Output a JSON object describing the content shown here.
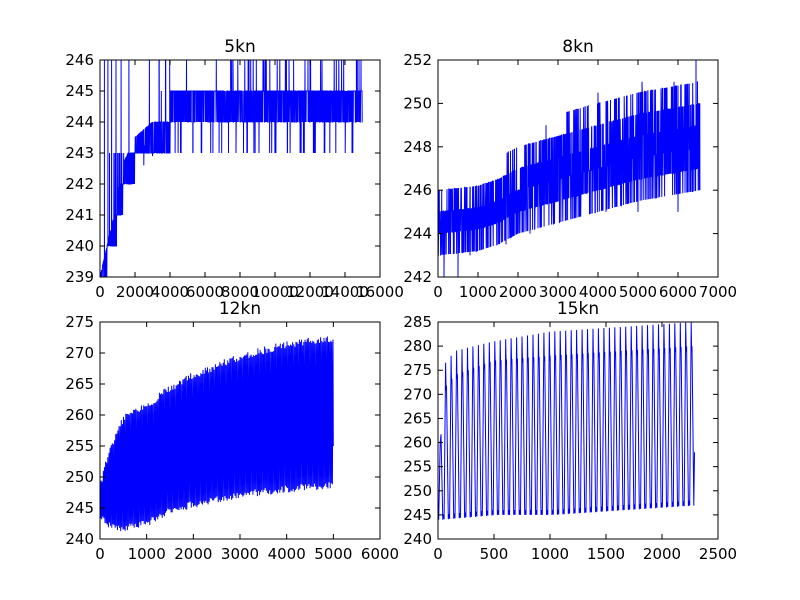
{
  "chart_data": [
    {
      "type": "line",
      "title": "5kn",
      "xlim": [
        0,
        16000
      ],
      "ylim": [
        239,
        246
      ],
      "xticks": [
        0,
        2000,
        4000,
        6000,
        8000,
        10000,
        12000,
        14000,
        16000
      ],
      "yticks": [
        239,
        240,
        241,
        242,
        243,
        244,
        245,
        246
      ],
      "series": [
        {
          "color": "#0000ff",
          "x_end": 15000,
          "baseline_points": [
            [
              0,
              239.0
            ],
            [
              400,
              240.0
            ],
            [
              700,
              240.5
            ],
            [
              1000,
              241.0
            ],
            [
              1300,
              242.0
            ],
            [
              1700,
              242.5
            ],
            [
              2000,
              243.0
            ],
            [
              3000,
              243.5
            ],
            [
              4000,
              243.8
            ],
            [
              5000,
              244.2
            ],
            [
              6000,
              244.3
            ],
            [
              10000,
              244.5
            ],
            [
              15000,
              244.5
            ]
          ],
          "band": [
            [
              0,
              239
            ],
            [
              800,
              241
            ],
            [
              1200,
              242.5
            ],
            [
              2000,
              243.5
            ],
            [
              4000,
              244.5
            ],
            [
              5000,
              245
            ],
            [
              15000,
              245
            ]
          ],
          "spikes": [
            [
              2500,
              242.6
            ],
            [
              3000,
              242.9
            ],
            [
              3500,
              245.0
            ],
            [
              4600,
              243.0
            ],
            [
              5300,
              243.0
            ],
            [
              7600,
              246.0
            ],
            [
              8200,
              243.0
            ],
            [
              9500,
              246.0
            ],
            [
              10800,
              246.0
            ],
            [
              12000,
              246.0
            ],
            [
              12300,
              243.0
            ],
            [
              13500,
              246.0
            ],
            [
              14400,
              243.0
            ],
            [
              14800,
              246.0
            ]
          ]
        }
      ]
    },
    {
      "type": "line",
      "title": "8kn",
      "xlim": [
        0,
        7000
      ],
      "ylim": [
        242,
        252
      ],
      "xticks": [
        0,
        1000,
        2000,
        3000,
        4000,
        5000,
        6000,
        7000
      ],
      "yticks": [
        242,
        244,
        246,
        248,
        250,
        252
      ],
      "series": [
        {
          "color": "#0000ff",
          "x_end": 6550,
          "upper": [
            [
              0,
              246
            ],
            [
              1000,
              246.2
            ],
            [
              1500,
              247
            ],
            [
              2000,
              248
            ],
            [
              3000,
              249
            ],
            [
              4000,
              250
            ],
            [
              5000,
              250.5
            ],
            [
              6550,
              251
            ]
          ],
          "lower": [
            [
              0,
              243
            ],
            [
              1000,
              243.2
            ],
            [
              1500,
              243.5
            ],
            [
              2000,
              244
            ],
            [
              3000,
              244.5
            ],
            [
              4000,
              245
            ],
            [
              5000,
              245.5
            ],
            [
              6550,
              246
            ]
          ],
          "dips": [
            [
              150,
              242.0
            ],
            [
              500,
              242.0
            ],
            [
              800,
              243.0
            ],
            [
              1700,
              243.5
            ],
            [
              2300,
              244.0
            ],
            [
              4200,
              245.0
            ],
            [
              5000,
              245.0
            ],
            [
              6000,
              245.0
            ]
          ],
          "spikes": [
            [
              2700,
              249.0
            ],
            [
              3400,
              249.0
            ],
            [
              4000,
              250.5
            ],
            [
              5100,
              251.0
            ],
            [
              5900,
              251.0
            ],
            [
              6450,
              252.0
            ]
          ]
        }
      ]
    },
    {
      "type": "line",
      "title": "12kn",
      "xlim": [
        0,
        6000
      ],
      "ylim": [
        240,
        275
      ],
      "xticks": [
        0,
        1000,
        2000,
        3000,
        4000,
        5000,
        6000
      ],
      "yticks": [
        240,
        245,
        250,
        255,
        260,
        265,
        270,
        275
      ],
      "series": [
        {
          "color": "#0000ff",
          "x_end": 5000,
          "upper": [
            [
              0,
              249
            ],
            [
              200,
              255
            ],
            [
              500,
              260
            ],
            [
              1000,
              262
            ],
            [
              1500,
              265
            ],
            [
              2000,
              267
            ],
            [
              3000,
              270
            ],
            [
              4000,
              272
            ],
            [
              5000,
              273
            ]
          ],
          "lower": [
            [
              0,
              243
            ],
            [
              200,
              241.5
            ],
            [
              500,
              241
            ],
            [
              1000,
              242
            ],
            [
              1500,
              244
            ],
            [
              2000,
              245
            ],
            [
              3000,
              246.5
            ],
            [
              4000,
              247.5
            ],
            [
              5000,
              248
            ]
          ],
          "end_value": 255
        }
      ]
    },
    {
      "type": "line",
      "title": "15kn",
      "xlim": [
        0,
        2500
      ],
      "ylim": [
        240,
        285
      ],
      "xticks": [
        0,
        500,
        1000,
        1500,
        2000,
        2500
      ],
      "yticks": [
        240,
        245,
        250,
        255,
        260,
        265,
        270,
        275,
        280,
        285
      ],
      "series": [
        {
          "color": "#0000ff",
          "x_end": 2290,
          "cycles": 47,
          "peaks_high": [
            [
              0,
              250
            ],
            [
              50,
              276
            ],
            [
              150,
              279
            ],
            [
              500,
              281
            ],
            [
              1000,
              283
            ],
            [
              2290,
              285
            ]
          ],
          "peaks_low": [
            [
              0,
              250
            ],
            [
              50,
              270
            ],
            [
              150,
              273
            ],
            [
              500,
              276
            ],
            [
              1000,
              277
            ],
            [
              2290,
              279
            ]
          ],
          "troughs": [
            [
              0,
              244
            ],
            [
              500,
              245
            ],
            [
              1000,
              245
            ],
            [
              2290,
              247
            ]
          ],
          "end_value": 258
        }
      ]
    }
  ]
}
